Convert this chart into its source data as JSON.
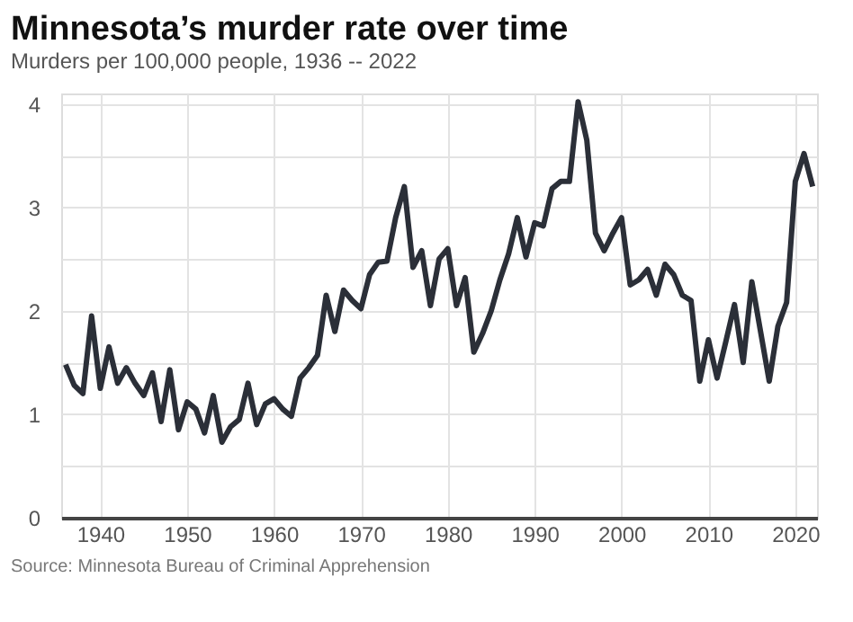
{
  "chart_data": {
    "type": "line",
    "title": "Minnesota’s murder rate over time",
    "subtitle": "Murders per 100,000 people, 1936 -- 2022",
    "x": [
      1936,
      1937,
      1938,
      1939,
      1940,
      1941,
      1942,
      1943,
      1944,
      1945,
      1946,
      1947,
      1948,
      1949,
      1950,
      1951,
      1952,
      1953,
      1954,
      1955,
      1956,
      1957,
      1958,
      1959,
      1960,
      1961,
      1962,
      1963,
      1964,
      1965,
      1966,
      1967,
      1968,
      1969,
      1970,
      1971,
      1972,
      1973,
      1974,
      1975,
      1976,
      1977,
      1978,
      1979,
      1980,
      1981,
      1982,
      1983,
      1984,
      1985,
      1986,
      1987,
      1988,
      1989,
      1990,
      1991,
      1992,
      1993,
      1994,
      1995,
      1996,
      1997,
      1998,
      1999,
      2000,
      2001,
      2002,
      2003,
      2004,
      2005,
      2006,
      2007,
      2008,
      2009,
      2010,
      2011,
      2012,
      2013,
      2014,
      2015,
      2016,
      2017,
      2018,
      2019,
      2020,
      2021,
      2022
    ],
    "series": [
      {
        "color": "#2b2f38",
        "values": [
          1.48,
          1.28,
          1.2,
          1.95,
          1.25,
          1.65,
          1.3,
          1.45,
          1.3,
          1.18,
          1.4,
          0.93,
          1.43,
          0.85,
          1.12,
          1.05,
          0.82,
          1.18,
          0.73,
          0.88,
          0.95,
          1.3,
          0.9,
          1.1,
          1.15,
          1.05,
          0.98,
          1.35,
          1.45,
          1.57,
          2.15,
          1.8,
          2.2,
          2.1,
          2.02,
          2.35,
          2.47,
          2.48,
          2.9,
          3.2,
          2.42,
          2.58,
          2.05,
          2.5,
          2.6,
          2.05,
          2.32,
          1.6,
          1.78,
          2.0,
          2.3,
          2.55,
          2.9,
          2.52,
          2.85,
          2.82,
          3.18,
          3.25,
          3.25,
          4.02,
          3.65,
          2.75,
          2.58,
          2.75,
          2.9,
          2.25,
          2.3,
          2.4,
          2.15,
          2.45,
          2.35,
          2.15,
          2.1,
          1.32,
          1.72,
          1.35,
          1.7,
          2.06,
          1.5,
          2.28,
          1.8,
          1.32,
          1.85,
          2.08,
          3.25,
          3.52,
          3.2
        ]
      }
    ],
    "xlim": [
      1935.5,
      2022.5
    ],
    "xticks": [
      1940,
      1950,
      1960,
      1970,
      1980,
      1990,
      2000,
      2010,
      2020
    ],
    "ylim": [
      0,
      4.1
    ],
    "yticks": [
      0,
      {
        "value": 0.5,
        "label": null
      },
      1,
      {
        "value": 1.5,
        "label": null
      },
      2,
      {
        "value": 2.5,
        "label": null
      },
      3,
      {
        "value": 3.5,
        "label": null
      },
      4
    ],
    "grid": true,
    "marker": "none",
    "line_style": "solid",
    "annotations": [
      "Source: Minnesota Bureau of Criminal Apprehension"
    ]
  }
}
